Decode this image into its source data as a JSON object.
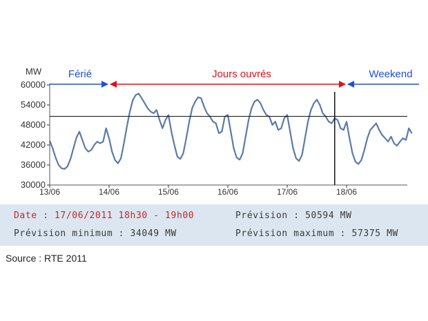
{
  "chart_data": {
    "type": "line",
    "ylabel": "MW",
    "ylim": [
      30000,
      60000
    ],
    "yticks": [
      60000,
      54000,
      48000,
      42000,
      36000,
      30000
    ],
    "ytick_labels": [
      "60000",
      "54000",
      "48000",
      "42000",
      "36000",
      "30000"
    ],
    "xtick_labels": [
      "13/06",
      "14/06",
      "15/06",
      "16/06",
      "17/06",
      "18/06"
    ],
    "xlim": [
      0,
      6.3
    ],
    "reference_line_y": 50594,
    "cursor_x": 4.8,
    "periods": [
      {
        "label": "Férié",
        "color": "#1f4fd8",
        "text_color": "#1f4fd8",
        "from": 0,
        "to": 1
      },
      {
        "label": "Jours ouvrés",
        "color": "#e0101a",
        "text_color": "#e0101a",
        "from": 1,
        "to": 5
      },
      {
        "label": "Weekend",
        "color": "#1f4fd8",
        "text_color": "#1f4fd8",
        "from": 5,
        "to": 6.3
      }
    ],
    "line_color": "#5b7aa8",
    "series": [
      {
        "x": [
          0.0,
          0.05,
          0.1,
          0.15,
          0.2,
          0.25,
          0.3,
          0.35,
          0.4,
          0.45,
          0.5,
          0.55,
          0.6,
          0.65,
          0.7,
          0.75,
          0.8,
          0.85,
          0.9,
          0.95,
          1.0,
          1.05,
          1.1,
          1.15,
          1.2,
          1.25,
          1.3,
          1.35,
          1.4,
          1.45,
          1.5,
          1.55,
          1.6,
          1.65,
          1.7,
          1.75,
          1.8,
          1.85,
          1.9,
          1.95,
          2.0,
          2.05,
          2.1,
          2.15,
          2.2,
          2.25,
          2.3,
          2.35,
          2.4,
          2.45,
          2.5,
          2.55,
          2.6,
          2.65,
          2.7,
          2.75,
          2.8,
          2.85,
          2.9,
          2.95,
          3.0,
          3.05,
          3.1,
          3.15,
          3.2,
          3.25,
          3.3,
          3.35,
          3.4,
          3.45,
          3.5,
          3.55,
          3.6,
          3.65,
          3.7,
          3.75,
          3.8,
          3.85,
          3.9,
          3.95,
          4.0,
          4.05,
          4.1,
          4.15,
          4.2,
          4.25,
          4.3,
          4.35,
          4.4,
          4.45,
          4.5,
          4.55,
          4.6,
          4.65,
          4.7,
          4.75,
          4.8,
          4.85,
          4.9,
          4.95,
          5.0,
          5.05,
          5.1,
          5.15,
          5.2,
          5.25,
          5.3,
          5.35,
          5.4,
          5.45,
          5.5,
          5.55,
          5.6,
          5.65,
          5.7,
          5.75,
          5.8,
          5.85,
          5.9,
          5.95,
          6.0,
          6.05,
          6.1
        ],
        "values": [
          43200,
          41000,
          38200,
          36000,
          35000,
          34800,
          35600,
          37800,
          41000,
          44200,
          46000,
          43500,
          41000,
          40000,
          40500,
          42000,
          43000,
          42500,
          43000,
          47000,
          44000,
          40000,
          37500,
          36500,
          38000,
          42500,
          47500,
          52000,
          55500,
          57000,
          57400,
          56000,
          54500,
          53000,
          52000,
          51500,
          52500,
          49500,
          47000,
          49500,
          51000,
          46000,
          42000,
          38500,
          37800,
          39500,
          44000,
          49000,
          53000,
          55000,
          56300,
          56000,
          53500,
          51500,
          50500,
          49000,
          48500,
          45500,
          46000,
          50500,
          51000,
          46000,
          41000,
          38200,
          37600,
          39500,
          44500,
          49500,
          53000,
          55000,
          55600,
          54500,
          52500,
          51000,
          50500,
          48000,
          49000,
          46500,
          47000,
          50000,
          51000,
          46000,
          41000,
          38000,
          37200,
          39000,
          44000,
          49000,
          52500,
          54500,
          55600,
          54000,
          51500,
          50500,
          49000,
          48500,
          50000,
          49500,
          47000,
          46500,
          49000,
          44000,
          39500,
          37000,
          36300,
          37500,
          40500,
          44000,
          46500,
          47500,
          48500,
          46500,
          45000,
          44000,
          43000,
          44500,
          42500,
          41800,
          43000,
          44000,
          43500,
          47000,
          45500
        ]
      }
    ]
  },
  "info_panel": {
    "date_text": "Date : 17/06/2011 18h30 - 19h00",
    "prevision_text": "Prévision  : 50594 MW",
    "min_text": "Prévision minimum : 34049 MW",
    "max_text": "Prévision maximum : 57375 MW"
  },
  "source": "Source : RTE 2011"
}
